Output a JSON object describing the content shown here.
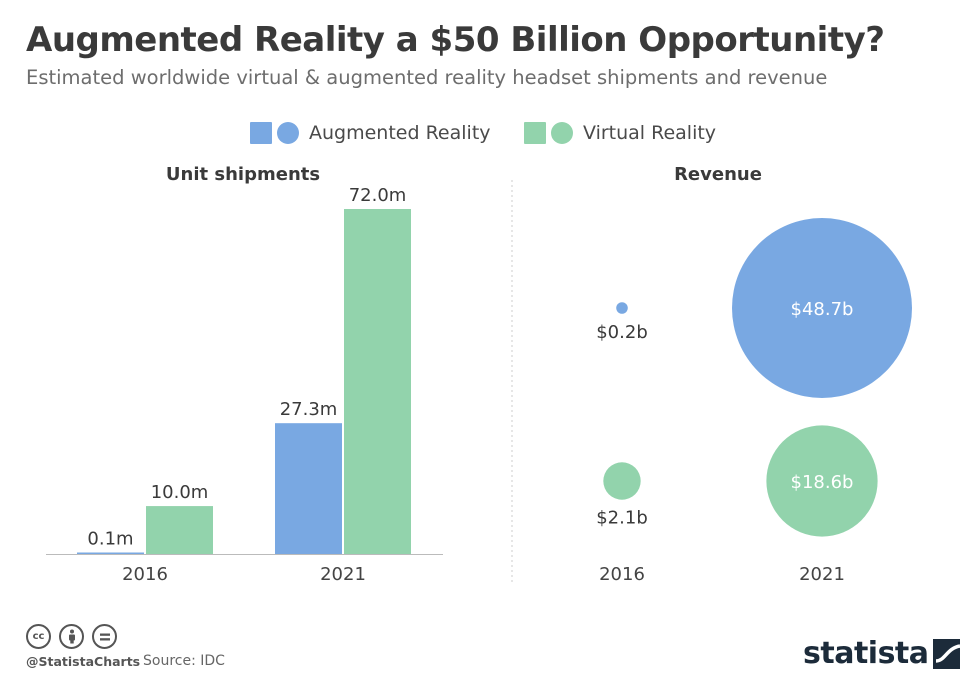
{
  "header": {
    "title": "Augmented Reality a $50 Billion Opportunity?",
    "subtitle": "Estimated worldwide virtual & augmented reality headset shipments and revenue"
  },
  "legend": [
    {
      "name": "Augmented Reality",
      "color": "#79a8e2"
    },
    {
      "name": "Virtual Reality",
      "color": "#92d3ac"
    }
  ],
  "chart_data": [
    {
      "type": "bar",
      "title": "Unit shipments",
      "categories": [
        "2016",
        "2021"
      ],
      "series": [
        {
          "name": "Augmented Reality",
          "values": [
            0.1,
            27.3
          ],
          "labels": [
            "0.1m",
            "27.3m"
          ],
          "color": "#79a8e2"
        },
        {
          "name": "Virtual Reality",
          "values": [
            10.0,
            72.0
          ],
          "labels": [
            "10.0m",
            "72.0m"
          ],
          "color": "#92d3ac"
        }
      ],
      "ylim": [
        0,
        72
      ],
      "grid": false
    },
    {
      "type": "scatter",
      "title": "Revenue",
      "categories": [
        "2016",
        "2021"
      ],
      "series": [
        {
          "name": "Augmented Reality",
          "values": [
            0.2,
            48.7
          ],
          "labels": [
            "$0.2b",
            "$48.7b"
          ],
          "color": "#79a8e2"
        },
        {
          "name": "Virtual Reality",
          "values": [
            2.1,
            18.6
          ],
          "labels": [
            "$2.1b",
            "$18.6b"
          ],
          "color": "#92d3ac"
        }
      ],
      "grid": false
    }
  ],
  "footer": {
    "handle": "@StatistaCharts",
    "source": "Source: IDC",
    "brand": "statista",
    "icons": [
      "cc-icon",
      "attribution-icon",
      "no-derivatives-icon"
    ]
  }
}
